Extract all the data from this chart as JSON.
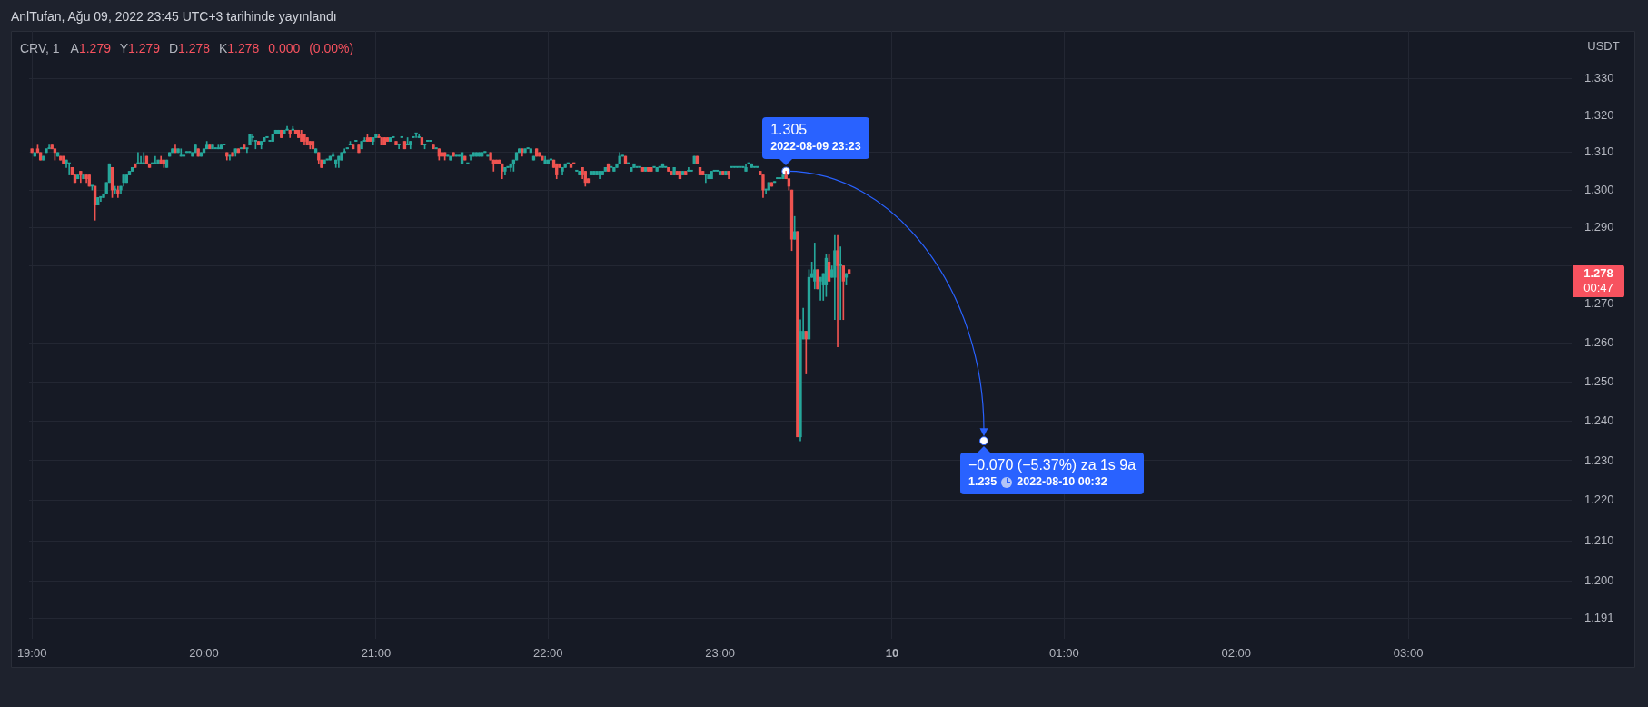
{
  "chart_data": {
    "type": "candlestick",
    "title": "CRV, 1",
    "subtitle": "A1.279 Y1.279 D1.278 K1.278 0.000 (0.00%)",
    "ylabel": "USDT",
    "annotations": [
      "AnlTufan, Ağu 09, 2022 23:45 UTC+3 tarihinde yayınlandı",
      "00:47",
      {
        "text": "1.305",
        "x": "2022-08-09T23:23",
        "y": 1.305
      },
      "2022-08-09 23:23",
      {
        "text": "−0.070 (−5.37%) za 1s 9a",
        "x": "2022-08-10T00:32",
        "y": 1.235
      },
      "1.235",
      "2022-08-10 00:32"
    ],
    "xlim": [
      "2022-08-09T18:59",
      "2022-08-10T03:57"
    ],
    "xticks": [
      {
        "value": "2022-08-09T19:00",
        "label": "19:00"
      },
      {
        "value": "2022-08-09T20:00",
        "label": "20:00"
      },
      {
        "value": "2022-08-09T21:00",
        "label": "21:00"
      },
      {
        "value": "2022-08-09T22:00",
        "label": "22:00"
      },
      {
        "value": "2022-08-09T23:00",
        "label": "23:00"
      },
      {
        "value": "2022-08-10T00:00",
        "label": "10"
      },
      {
        "value": "2022-08-10T01:00",
        "label": "01:00"
      },
      {
        "value": "2022-08-10T02:00",
        "label": "02:00"
      },
      {
        "value": "2022-08-10T03:00",
        "label": "03:00"
      }
    ],
    "ylim": [
      1.186,
      1.343
    ],
    "yticks": [
      1.191,
      {
        "value": 1.2,
        "label": "1.200"
      },
      {
        "value": 1.21,
        "label": "1.210"
      },
      {
        "value": 1.22,
        "label": "1.220"
      },
      {
        "value": 1.23,
        "label": "1.230"
      },
      {
        "value": 1.24,
        "label": "1.240"
      },
      {
        "value": 1.25,
        "label": "1.250"
      },
      {
        "value": 1.26,
        "label": "1.260"
      },
      {
        "value": 1.27,
        "label": "1.270"
      },
      {
        "value": 1.28,
        "label": null
      },
      {
        "value": 1.29,
        "label": "1.290"
      },
      {
        "value": 1.3,
        "label": "1.300"
      },
      {
        "value": 1.31,
        "label": "1.310"
      },
      {
        "value": 1.32,
        "label": "1.320"
      },
      {
        "value": 1.33,
        "label": "1.330"
      }
    ],
    "log": true,
    "grid": true,
    "ref_lines": [
      {
        "axis": "y",
        "value": 1.278,
        "label": "1.278",
        "color": "#f7525f",
        "line_style": "dotted"
      }
    ],
    "x": [
      "2022-08-09T19:00",
      "2022-08-09T19:01",
      "2022-08-09T19:02",
      "2022-08-09T19:03",
      "2022-08-09T19:04",
      "2022-08-09T19:05",
      "2022-08-09T19:06",
      "2022-08-09T19:07",
      "2022-08-09T19:08",
      "2022-08-09T19:09",
      "2022-08-09T19:10",
      "2022-08-09T19:11",
      "2022-08-09T19:12",
      "2022-08-09T19:13",
      "2022-08-09T19:14",
      "2022-08-09T19:15",
      "2022-08-09T19:16",
      "2022-08-09T19:17",
      "2022-08-09T19:18",
      "2022-08-09T19:19",
      "2022-08-09T19:20",
      "2022-08-09T19:21",
      "2022-08-09T19:22",
      "2022-08-09T19:23",
      "2022-08-09T19:24",
      "2022-08-09T19:25",
      "2022-08-09T19:26",
      "2022-08-09T19:27",
      "2022-08-09T19:28",
      "2022-08-09T19:29",
      "2022-08-09T19:30",
      "2022-08-09T19:31",
      "2022-08-09T19:32",
      "2022-08-09T19:33",
      "2022-08-09T19:34",
      "2022-08-09T19:35",
      "2022-08-09T19:36",
      "2022-08-09T19:37",
      "2022-08-09T19:38",
      "2022-08-09T19:39",
      "2022-08-09T19:40",
      "2022-08-09T19:41",
      "2022-08-09T19:42",
      "2022-08-09T19:43",
      "2022-08-09T19:44",
      "2022-08-09T19:45",
      "2022-08-09T19:46",
      "2022-08-09T19:47",
      "2022-08-09T19:48",
      "2022-08-09T19:49",
      "2022-08-09T19:50",
      "2022-08-09T19:51",
      "2022-08-09T19:52",
      "2022-08-09T19:53",
      "2022-08-09T19:54",
      "2022-08-09T19:55",
      "2022-08-09T19:56",
      "2022-08-09T19:57",
      "2022-08-09T19:58",
      "2022-08-09T19:59",
      "2022-08-09T20:00",
      "2022-08-09T20:01",
      "2022-08-09T20:02",
      "2022-08-09T20:03",
      "2022-08-09T20:04",
      "2022-08-09T20:05",
      "2022-08-09T20:06",
      "2022-08-09T20:07",
      "2022-08-09T20:08",
      "2022-08-09T20:09",
      "2022-08-09T20:10",
      "2022-08-09T20:11",
      "2022-08-09T20:12",
      "2022-08-09T20:13",
      "2022-08-09T20:14",
      "2022-08-09T20:15",
      "2022-08-09T20:16",
      "2022-08-09T20:17",
      "2022-08-09T20:18",
      "2022-08-09T20:19",
      "2022-08-09T20:20",
      "2022-08-09T20:21",
      "2022-08-09T20:22",
      "2022-08-09T20:23",
      "2022-08-09T20:24",
      "2022-08-09T20:25",
      "2022-08-09T20:26",
      "2022-08-09T20:27",
      "2022-08-09T20:28",
      "2022-08-09T20:29",
      "2022-08-09T20:30",
      "2022-08-09T20:31",
      "2022-08-09T20:32",
      "2022-08-09T20:33",
      "2022-08-09T20:34",
      "2022-08-09T20:35",
      "2022-08-09T20:36",
      "2022-08-09T20:37",
      "2022-08-09T20:38",
      "2022-08-09T20:39",
      "2022-08-09T20:40",
      "2022-08-09T20:41",
      "2022-08-09T20:42",
      "2022-08-09T20:43",
      "2022-08-09T20:44",
      "2022-08-09T20:45",
      "2022-08-09T20:46",
      "2022-08-09T20:47",
      "2022-08-09T20:48",
      "2022-08-09T20:49",
      "2022-08-09T20:50",
      "2022-08-09T20:51",
      "2022-08-09T20:52",
      "2022-08-09T20:53",
      "2022-08-09T20:54",
      "2022-08-09T20:55",
      "2022-08-09T20:56",
      "2022-08-09T20:57",
      "2022-08-09T20:58",
      "2022-08-09T20:59",
      "2022-08-09T21:00",
      "2022-08-09T21:01",
      "2022-08-09T21:02",
      "2022-08-09T21:03",
      "2022-08-09T21:04",
      "2022-08-09T21:05",
      "2022-08-09T21:06",
      "2022-08-09T21:07",
      "2022-08-09T21:08",
      "2022-08-09T21:09",
      "2022-08-09T21:10",
      "2022-08-09T21:11",
      "2022-08-09T21:12",
      "2022-08-09T21:13",
      "2022-08-09T21:14",
      "2022-08-09T21:15",
      "2022-08-09T21:16",
      "2022-08-09T21:17",
      "2022-08-09T21:18",
      "2022-08-09T21:19",
      "2022-08-09T21:20",
      "2022-08-09T21:21",
      "2022-08-09T21:22",
      "2022-08-09T21:23",
      "2022-08-09T21:24",
      "2022-08-09T21:25",
      "2022-08-09T21:26",
      "2022-08-09T21:27",
      "2022-08-09T21:28",
      "2022-08-09T21:29",
      "2022-08-09T21:30",
      "2022-08-09T21:31",
      "2022-08-09T21:32",
      "2022-08-09T21:33",
      "2022-08-09T21:34",
      "2022-08-09T21:35",
      "2022-08-09T21:36",
      "2022-08-09T21:37",
      "2022-08-09T21:38",
      "2022-08-09T21:39",
      "2022-08-09T21:40",
      "2022-08-09T21:41",
      "2022-08-09T21:42",
      "2022-08-09T21:43",
      "2022-08-09T21:44",
      "2022-08-09T21:45",
      "2022-08-09T21:46",
      "2022-08-09T21:47",
      "2022-08-09T21:48",
      "2022-08-09T21:49",
      "2022-08-09T21:50",
      "2022-08-09T21:51",
      "2022-08-09T21:52",
      "2022-08-09T21:53",
      "2022-08-09T21:54",
      "2022-08-09T21:55",
      "2022-08-09T21:56",
      "2022-08-09T21:57",
      "2022-08-09T21:58",
      "2022-08-09T21:59",
      "2022-08-09T22:00",
      "2022-08-09T22:01",
      "2022-08-09T22:02",
      "2022-08-09T22:03",
      "2022-08-09T22:04",
      "2022-08-09T22:05",
      "2022-08-09T22:06",
      "2022-08-09T22:07",
      "2022-08-09T22:08",
      "2022-08-09T22:09",
      "2022-08-09T22:10",
      "2022-08-09T22:11",
      "2022-08-09T22:12",
      "2022-08-09T22:13",
      "2022-08-09T22:14",
      "2022-08-09T22:15",
      "2022-08-09T22:16",
      "2022-08-09T22:17",
      "2022-08-09T22:18",
      "2022-08-09T22:19",
      "2022-08-09T22:20",
      "2022-08-09T22:21",
      "2022-08-09T22:22",
      "2022-08-09T22:23",
      "2022-08-09T22:24",
      "2022-08-09T22:25",
      "2022-08-09T22:26",
      "2022-08-09T22:27",
      "2022-08-09T22:28",
      "2022-08-09T22:29",
      "2022-08-09T22:30",
      "2022-08-09T22:31",
      "2022-08-09T22:32",
      "2022-08-09T22:33",
      "2022-08-09T22:34",
      "2022-08-09T22:35",
      "2022-08-09T22:36",
      "2022-08-09T22:37",
      "2022-08-09T22:38",
      "2022-08-09T22:39",
      "2022-08-09T22:40",
      "2022-08-09T22:41",
      "2022-08-09T22:42",
      "2022-08-09T22:43",
      "2022-08-09T22:44",
      "2022-08-09T22:45",
      "2022-08-09T22:46",
      "2022-08-09T22:47",
      "2022-08-09T22:48",
      "2022-08-09T22:49",
      "2022-08-09T22:50",
      "2022-08-09T22:51",
      "2022-08-09T22:52",
      "2022-08-09T22:53",
      "2022-08-09T22:54",
      "2022-08-09T22:55",
      "2022-08-09T22:56",
      "2022-08-09T22:57",
      "2022-08-09T22:58",
      "2022-08-09T22:59",
      "2022-08-09T23:00",
      "2022-08-09T23:01",
      "2022-08-09T23:02",
      "2022-08-09T23:03",
      "2022-08-09T23:04",
      "2022-08-09T23:05",
      "2022-08-09T23:06",
      "2022-08-09T23:07",
      "2022-08-09T23:08",
      "2022-08-09T23:09",
      "2022-08-09T23:10",
      "2022-08-09T23:11",
      "2022-08-09T23:12",
      "2022-08-09T23:13",
      "2022-08-09T23:14",
      "2022-08-09T23:15",
      "2022-08-09T23:16",
      "2022-08-09T23:17",
      "2022-08-09T23:18",
      "2022-08-09T23:19",
      "2022-08-09T23:20",
      "2022-08-09T23:21",
      "2022-08-09T23:22",
      "2022-08-09T23:23",
      "2022-08-09T23:24",
      "2022-08-09T23:25",
      "2022-08-09T23:26",
      "2022-08-09T23:27",
      "2022-08-09T23:28",
      "2022-08-09T23:29",
      "2022-08-09T23:30",
      "2022-08-09T23:31",
      "2022-08-09T23:32",
      "2022-08-09T23:33",
      "2022-08-09T23:34",
      "2022-08-09T23:35",
      "2022-08-09T23:36",
      "2022-08-09T23:37",
      "2022-08-09T23:38",
      "2022-08-09T23:39",
      "2022-08-09T23:40",
      "2022-08-09T23:41",
      "2022-08-09T23:42",
      "2022-08-09T23:43",
      "2022-08-09T23:44",
      "2022-08-09T23:45"
    ],
    "ohlc": [
      [
        1.311,
        1.311,
        1.31,
        1.31
      ],
      [
        1.309,
        1.31,
        1.309,
        1.31
      ],
      [
        1.311,
        1.312,
        1.31,
        1.31
      ],
      [
        1.31,
        1.31,
        1.308,
        1.308
      ],
      [
        1.308,
        1.309,
        1.308,
        1.309
      ],
      [
        1.31,
        1.311,
        1.31,
        1.311
      ],
      [
        1.311,
        1.312,
        1.311,
        1.311
      ],
      [
        1.312,
        1.312,
        1.311,
        1.311
      ],
      [
        1.311,
        1.311,
        1.308,
        1.31
      ],
      [
        1.309,
        1.31,
        1.309,
        1.31
      ],
      [
        1.309,
        1.309,
        1.308,
        1.308
      ],
      [
        1.309,
        1.309,
        1.307,
        1.307
      ],
      [
        1.307,
        1.308,
        1.306,
        1.308
      ],
      [
        1.307,
        1.307,
        1.304,
        1.307
      ],
      [
        1.306,
        1.306,
        1.304,
        1.304
      ],
      [
        1.304,
        1.304,
        1.302,
        1.302
      ],
      [
        1.303,
        1.304,
        1.303,
        1.304
      ],
      [
        1.305,
        1.305,
        1.302,
        1.304
      ],
      [
        1.303,
        1.304,
        1.303,
        1.304
      ],
      [
        1.304,
        1.304,
        1.302,
        1.303
      ],
      [
        1.304,
        1.304,
        1.301,
        1.301
      ],
      [
        1.301,
        1.301,
        1.3,
        1.301
      ],
      [
        1.301,
        1.301,
        1.292,
        1.296
      ],
      [
        1.296,
        1.298,
        1.296,
        1.298
      ],
      [
        1.298,
        1.298,
        1.297,
        1.298
      ],
      [
        1.298,
        1.299,
        1.298,
        1.299
      ],
      [
        1.299,
        1.302,
        1.299,
        1.302
      ],
      [
        1.302,
        1.307,
        1.302,
        1.307
      ],
      [
        1.306,
        1.306,
        1.298,
        1.3
      ],
      [
        1.3,
        1.301,
        1.299,
        1.3
      ],
      [
        1.3,
        1.301,
        1.298,
        1.299
      ],
      [
        1.3,
        1.301,
        1.299,
        1.301
      ],
      [
        1.302,
        1.304,
        1.301,
        1.304
      ],
      [
        1.302,
        1.304,
        1.302,
        1.304
      ],
      [
        1.304,
        1.305,
        1.304,
        1.305
      ],
      [
        1.305,
        1.306,
        1.305,
        1.306
      ],
      [
        1.307,
        1.307,
        1.306,
        1.306
      ],
      [
        1.307,
        1.31,
        1.307,
        1.307
      ],
      [
        1.307,
        1.309,
        1.307,
        1.307
      ],
      [
        1.307,
        1.31,
        1.307,
        1.307
      ],
      [
        1.309,
        1.309,
        1.307,
        1.307
      ],
      [
        1.307,
        1.307,
        1.306,
        1.306
      ],
      [
        1.307,
        1.307,
        1.307,
        1.307
      ],
      [
        1.307,
        1.309,
        1.307,
        1.307
      ],
      [
        1.307,
        1.308,
        1.307,
        1.308
      ],
      [
        1.308,
        1.309,
        1.307,
        1.307
      ],
      [
        1.308,
        1.308,
        1.306,
        1.307
      ],
      [
        1.306,
        1.308,
        1.306,
        1.308
      ],
      [
        1.309,
        1.31,
        1.309,
        1.31
      ],
      [
        1.31,
        1.311,
        1.31,
        1.311
      ],
      [
        1.311,
        1.312,
        1.31,
        1.31
      ],
      [
        1.31,
        1.311,
        1.31,
        1.311
      ],
      [
        1.309,
        1.311,
        1.309,
        1.309
      ],
      [
        1.309,
        1.309,
        1.309,
        1.309
      ],
      [
        1.31,
        1.31,
        1.31,
        1.31
      ],
      [
        1.31,
        1.31,
        1.31,
        1.31
      ],
      [
        1.309,
        1.31,
        1.309,
        1.31
      ],
      [
        1.31,
        1.312,
        1.31,
        1.312
      ],
      [
        1.311,
        1.311,
        1.309,
        1.309
      ],
      [
        1.309,
        1.31,
        1.309,
        1.31
      ],
      [
        1.31,
        1.311,
        1.31,
        1.311
      ],
      [
        1.311,
        1.313,
        1.311,
        1.312
      ],
      [
        1.312,
        1.312,
        1.311,
        1.311
      ],
      [
        1.311,
        1.312,
        1.311,
        1.312
      ],
      [
        1.311,
        1.311,
        1.311,
        1.311
      ],
      [
        1.311,
        1.312,
        1.311,
        1.311
      ],
      [
        1.311,
        1.312,
        1.311,
        1.312
      ],
      [
        1.312,
        1.312,
        1.312,
        1.312
      ],
      [
        1.31,
        1.31,
        1.308,
        1.309
      ],
      [
        1.309,
        1.309,
        1.308,
        1.309
      ],
      [
        1.31,
        1.31,
        1.309,
        1.309
      ],
      [
        1.31,
        1.311,
        1.309,
        1.311
      ],
      [
        1.311,
        1.311,
        1.31,
        1.31
      ],
      [
        1.311,
        1.311,
        1.311,
        1.311
      ],
      [
        1.312,
        1.312,
        1.311,
        1.311
      ],
      [
        1.311,
        1.311,
        1.31,
        1.311
      ],
      [
        1.312,
        1.315,
        1.312,
        1.315
      ],
      [
        1.314,
        1.315,
        1.313,
        1.314
      ],
      [
        1.313,
        1.313,
        1.311,
        1.313
      ],
      [
        1.313,
        1.313,
        1.312,
        1.312
      ],
      [
        1.312,
        1.313,
        1.311,
        1.313
      ],
      [
        1.313,
        1.314,
        1.313,
        1.314
      ],
      [
        1.314,
        1.314,
        1.314,
        1.314
      ],
      [
        1.313,
        1.313,
        1.313,
        1.313
      ],
      [
        1.313,
        1.315,
        1.313,
        1.315
      ],
      [
        1.315,
        1.316,
        1.315,
        1.316
      ],
      [
        1.315,
        1.316,
        1.315,
        1.316
      ],
      [
        1.316,
        1.316,
        1.314,
        1.314
      ],
      [
        1.315,
        1.316,
        1.315,
        1.316
      ],
      [
        1.316,
        1.317,
        1.316,
        1.316
      ],
      [
        1.316,
        1.316,
        1.314,
        1.315
      ],
      [
        1.316,
        1.317,
        1.316,
        1.316
      ],
      [
        1.316,
        1.316,
        1.315,
        1.315
      ],
      [
        1.316,
        1.316,
        1.314,
        1.314
      ],
      [
        1.315,
        1.316,
        1.313,
        1.313
      ],
      [
        1.315,
        1.315,
        1.312,
        1.313
      ],
      [
        1.314,
        1.314,
        1.312,
        1.312
      ],
      [
        1.313,
        1.313,
        1.311,
        1.312
      ],
      [
        1.313,
        1.313,
        1.311,
        1.311
      ],
      [
        1.31,
        1.311,
        1.31,
        1.311
      ],
      [
        1.31,
        1.31,
        1.307,
        1.308
      ],
      [
        1.308,
        1.308,
        1.306,
        1.306
      ],
      [
        1.307,
        1.308,
        1.307,
        1.308
      ],
      [
        1.308,
        1.308,
        1.308,
        1.308
      ],
      [
        1.308,
        1.309,
        1.308,
        1.309
      ],
      [
        1.309,
        1.31,
        1.309,
        1.309
      ],
      [
        1.307,
        1.308,
        1.306,
        1.308
      ],
      [
        1.308,
        1.309,
        1.306,
        1.309
      ],
      [
        1.308,
        1.31,
        1.308,
        1.31
      ],
      [
        1.31,
        1.311,
        1.31,
        1.31
      ],
      [
        1.311,
        1.311,
        1.311,
        1.311
      ],
      [
        1.312,
        1.313,
        1.312,
        1.312
      ],
      [
        1.312,
        1.312,
        1.311,
        1.311
      ],
      [
        1.313,
        1.313,
        1.313,
        1.313
      ],
      [
        1.312,
        1.312,
        1.31,
        1.31
      ],
      [
        1.311,
        1.313,
        1.311,
        1.313
      ],
      [
        1.313,
        1.314,
        1.313,
        1.313
      ],
      [
        1.314,
        1.315,
        1.313,
        1.313
      ],
      [
        1.314,
        1.314,
        1.313,
        1.313
      ],
      [
        1.313,
        1.314,
        1.312,
        1.314
      ],
      [
        1.314,
        1.315,
        1.314,
        1.315
      ],
      [
        1.314,
        1.315,
        1.314,
        1.314
      ],
      [
        1.314,
        1.314,
        1.312,
        1.312
      ],
      [
        1.314,
        1.314,
        1.312,
        1.312
      ],
      [
        1.314,
        1.314,
        1.313,
        1.313
      ],
      [
        1.313,
        1.314,
        1.313,
        1.314
      ],
      [
        1.314,
        1.314,
        1.314,
        1.314
      ],
      [
        1.313,
        1.313,
        1.312,
        1.312
      ],
      [
        1.312,
        1.312,
        1.311,
        1.312
      ],
      [
        1.314,
        1.314,
        1.314,
        1.314
      ],
      [
        1.313,
        1.313,
        1.311,
        1.311
      ],
      [
        1.312,
        1.314,
        1.312,
        1.312
      ],
      [
        1.312,
        1.313,
        1.311,
        1.313
      ],
      [
        1.314,
        1.314,
        1.314,
        1.314
      ],
      [
        1.315,
        1.315,
        1.314,
        1.315
      ],
      [
        1.314,
        1.315,
        1.314,
        1.314
      ],
      [
        1.314,
        1.314,
        1.312,
        1.312
      ],
      [
        1.312,
        1.312,
        1.311,
        1.312
      ],
      [
        1.313,
        1.313,
        1.313,
        1.313
      ],
      [
        1.313,
        1.313,
        1.313,
        1.313
      ],
      [
        1.312,
        1.312,
        1.311,
        1.311
      ],
      [
        1.311,
        1.311,
        1.311,
        1.311
      ],
      [
        1.311,
        1.311,
        1.308,
        1.309
      ],
      [
        1.31,
        1.31,
        1.309,
        1.309
      ],
      [
        1.31,
        1.31,
        1.308,
        1.309
      ],
      [
        1.309,
        1.309,
        1.309,
        1.309
      ],
      [
        1.308,
        1.309,
        1.308,
        1.309
      ],
      [
        1.31,
        1.31,
        1.309,
        1.309
      ],
      [
        1.309,
        1.309,
        1.309,
        1.309
      ],
      [
        1.309,
        1.309,
        1.309,
        1.309
      ],
      [
        1.307,
        1.31,
        1.307,
        1.31
      ],
      [
        1.309,
        1.309,
        1.308,
        1.308
      ],
      [
        1.307,
        1.307,
        1.307,
        1.307
      ],
      [
        1.309,
        1.309,
        1.308,
        1.309
      ],
      [
        1.309,
        1.31,
        1.309,
        1.31
      ],
      [
        1.309,
        1.31,
        1.309,
        1.31
      ],
      [
        1.309,
        1.31,
        1.309,
        1.31
      ],
      [
        1.309,
        1.31,
        1.309,
        1.31
      ],
      [
        1.31,
        1.31,
        1.31,
        1.31
      ],
      [
        1.309,
        1.309,
        1.309,
        1.309
      ],
      [
        1.31,
        1.31,
        1.308,
        1.308
      ],
      [
        1.308,
        1.308,
        1.305,
        1.307
      ],
      [
        1.308,
        1.308,
        1.307,
        1.307
      ],
      [
        1.308,
        1.308,
        1.307,
        1.307
      ],
      [
        1.307,
        1.307,
        1.303,
        1.305
      ],
      [
        1.305,
        1.306,
        1.304,
        1.306
      ],
      [
        1.306,
        1.306,
        1.306,
        1.306
      ],
      [
        1.306,
        1.307,
        1.305,
        1.307
      ],
      [
        1.307,
        1.308,
        1.305,
        1.308
      ],
      [
        1.308,
        1.31,
        1.308,
        1.31
      ],
      [
        1.31,
        1.311,
        1.31,
        1.311
      ],
      [
        1.311,
        1.311,
        1.309,
        1.31
      ],
      [
        1.31,
        1.311,
        1.31,
        1.311
      ],
      [
        1.311,
        1.311,
        1.311,
        1.311
      ],
      [
        1.31,
        1.311,
        1.31,
        1.311
      ],
      [
        1.308,
        1.309,
        1.308,
        1.309
      ],
      [
        1.311,
        1.311,
        1.309,
        1.309
      ],
      [
        1.31,
        1.31,
        1.309,
        1.309
      ],
      [
        1.309,
        1.309,
        1.308,
        1.308
      ],
      [
        1.307,
        1.309,
        1.307,
        1.308
      ],
      [
        1.307,
        1.308,
        1.307,
        1.308
      ],
      [
        1.308,
        1.308,
        1.308,
        1.308
      ],
      [
        1.308,
        1.308,
        1.306,
        1.306
      ],
      [
        1.307,
        1.307,
        1.303,
        1.304
      ],
      [
        1.307,
        1.307,
        1.306,
        1.306
      ],
      [
        1.305,
        1.306,
        1.304,
        1.306
      ],
      [
        1.306,
        1.307,
        1.306,
        1.307
      ],
      [
        1.307,
        1.307,
        1.307,
        1.307
      ],
      [
        1.307,
        1.307,
        1.306,
        1.306
      ],
      [
        1.307,
        1.307,
        1.307,
        1.307
      ],
      [
        1.305,
        1.305,
        1.305,
        1.305
      ],
      [
        1.304,
        1.305,
        1.304,
        1.305
      ],
      [
        1.306,
        1.306,
        1.303,
        1.304
      ],
      [
        1.305,
        1.305,
        1.301,
        1.302
      ],
      [
        1.303,
        1.303,
        1.302,
        1.302
      ],
      [
        1.304,
        1.305,
        1.304,
        1.305
      ],
      [
        1.304,
        1.305,
        1.304,
        1.305
      ],
      [
        1.304,
        1.305,
        1.304,
        1.305
      ],
      [
        1.304,
        1.305,
        1.303,
        1.305
      ],
      [
        1.304,
        1.305,
        1.304,
        1.305
      ],
      [
        1.305,
        1.306,
        1.305,
        1.306
      ],
      [
        1.307,
        1.307,
        1.305,
        1.305
      ],
      [
        1.306,
        1.306,
        1.306,
        1.306
      ],
      [
        1.305,
        1.306,
        1.305,
        1.306
      ],
      [
        1.306,
        1.307,
        1.306,
        1.307
      ],
      [
        1.307,
        1.31,
        1.307,
        1.309
      ],
      [
        1.309,
        1.309,
        1.309,
        1.309
      ],
      [
        1.309,
        1.309,
        1.307,
        1.307
      ],
      [
        1.307,
        1.307,
        1.307,
        1.307
      ],
      [
        1.305,
        1.306,
        1.305,
        1.306
      ],
      [
        1.306,
        1.307,
        1.306,
        1.307
      ],
      [
        1.306,
        1.306,
        1.306,
        1.306
      ],
      [
        1.306,
        1.306,
        1.306,
        1.306
      ],
      [
        1.306,
        1.306,
        1.305,
        1.305
      ],
      [
        1.305,
        1.306,
        1.305,
        1.306
      ],
      [
        1.306,
        1.306,
        1.305,
        1.305
      ],
      [
        1.306,
        1.306,
        1.305,
        1.305
      ],
      [
        1.306,
        1.306,
        1.306,
        1.306
      ],
      [
        1.305,
        1.306,
        1.305,
        1.306
      ],
      [
        1.306,
        1.306,
        1.306,
        1.306
      ],
      [
        1.306,
        1.307,
        1.306,
        1.307
      ],
      [
        1.306,
        1.306,
        1.306,
        1.306
      ],
      [
        1.306,
        1.306,
        1.305,
        1.305
      ],
      [
        1.305,
        1.305,
        1.304,
        1.304
      ],
      [
        1.304,
        1.306,
        1.304,
        1.306
      ],
      [
        1.305,
        1.305,
        1.304,
        1.304
      ],
      [
        1.305,
        1.305,
        1.303,
        1.303
      ],
      [
        1.304,
        1.305,
        1.304,
        1.305
      ],
      [
        1.305,
        1.305,
        1.304,
        1.304
      ],
      [
        1.305,
        1.306,
        1.305,
        1.305
      ],
      [
        1.305,
        1.305,
        1.305,
        1.305
      ],
      [
        1.307,
        1.309,
        1.307,
        1.309
      ],
      [
        1.309,
        1.309,
        1.307,
        1.307
      ],
      [
        1.306,
        1.306,
        1.304,
        1.304
      ],
      [
        1.305,
        1.305,
        1.304,
        1.304
      ],
      [
        1.304,
        1.304,
        1.302,
        1.304
      ],
      [
        1.303,
        1.304,
        1.303,
        1.304
      ],
      [
        1.303,
        1.305,
        1.303,
        1.305
      ],
      [
        1.305,
        1.305,
        1.305,
        1.305
      ],
      [
        1.305,
        1.305,
        1.305,
        1.305
      ],
      [
        1.304,
        1.305,
        1.304,
        1.305
      ],
      [
        1.305,
        1.305,
        1.304,
        1.304
      ],
      [
        1.304,
        1.305,
        1.304,
        1.305
      ],
      [
        1.305,
        1.305,
        1.303,
        1.304
      ],
      [
        1.306,
        1.306,
        1.306,
        1.306
      ],
      [
        1.306,
        1.306,
        1.306,
        1.306
      ],
      [
        1.306,
        1.306,
        1.306,
        1.306
      ],
      [
        1.306,
        1.306,
        1.306,
        1.306
      ],
      [
        1.306,
        1.306,
        1.306,
        1.306
      ],
      [
        1.305,
        1.307,
        1.305,
        1.306
      ],
      [
        1.307,
        1.307,
        1.307,
        1.307
      ],
      [
        1.306,
        1.307,
        1.306,
        1.307
      ],
      [
        1.306,
        1.306,
        1.306,
        1.306
      ],
      [
        1.306,
        1.306,
        1.306,
        1.306
      ],
      [
        1.305,
        1.305,
        1.304,
        1.304
      ],
      [
        1.304,
        1.304,
        1.298,
        1.3
      ],
      [
        1.3,
        1.3,
        1.299,
        1.3
      ],
      [
        1.3,
        1.302,
        1.3,
        1.302
      ],
      [
        1.302,
        1.302,
        1.301,
        1.301
      ],
      [
        1.302,
        1.302,
        1.302,
        1.302
      ],
      [
        1.303,
        1.303,
        1.303,
        1.303
      ],
      [
        1.303,
        1.303,
        1.303,
        1.303
      ],
      [
        1.303,
        1.304,
        1.303,
        1.304
      ],
      [
        1.304,
        1.305,
        1.303,
        1.303
      ],
      [
        1.303,
        1.303,
        1.3,
        1.301
      ],
      [
        1.3,
        1.3,
        1.284,
        1.287
      ],
      [
        1.287,
        1.293,
        1.287,
        1.289
      ],
      [
        1.289,
        1.289,
        1.236,
        1.236
      ],
      [
        1.236,
        1.266,
        1.235,
        1.263
      ],
      [
        1.261,
        1.269,
        1.261,
        1.263
      ],
      [
        1.263,
        1.263,
        1.252,
        1.261
      ],
      [
        1.261,
        1.279,
        1.261,
        1.277
      ],
      [
        1.277,
        1.281,
        1.277,
        1.278
      ],
      [
        1.276,
        1.286,
        1.274,
        1.279
      ],
      [
        1.279,
        1.279,
        1.274,
        1.274
      ],
      [
        1.276,
        1.277,
        1.271,
        1.277
      ],
      [
        1.275,
        1.278,
        1.271,
        1.278
      ],
      [
        1.275,
        1.283,
        1.272,
        1.282
      ],
      [
        1.281,
        1.283,
        1.276,
        1.276
      ],
      [
        1.277,
        1.28,
        1.277,
        1.279
      ],
      [
        1.277,
        1.288,
        1.266,
        1.284
      ],
      [
        1.284,
        1.288,
        1.259,
        1.28
      ],
      [
        1.28,
        1.285,
        1.266,
        1.28
      ],
      [
        1.28,
        1.28,
        1.266,
        1.276
      ],
      [
        1.277,
        1.278,
        1.275,
        1.278
      ],
      [
        1.279,
        1.279,
        1.278,
        1.278
      ]
    ],
    "colors": [
      "#ef5350",
      "#26a69a",
      "#ef5350",
      "#ef5350",
      "#26a69a",
      "#26a69a",
      "#26a69a",
      "#ef5350",
      "#ef5350",
      "#26a69a",
      "#ef5350",
      "#ef5350",
      "#26a69a",
      "#26a69a",
      "#ef5350",
      "#ef5350",
      "#26a69a",
      "#ef5350",
      "#26a69a",
      "#ef5350",
      "#ef5350",
      "#26a69a",
      "#ef5350",
      "#26a69a",
      "#26a69a",
      "#26a69a",
      "#26a69a",
      "#26a69a",
      "#ef5350",
      "#26a69a",
      "#ef5350",
      "#26a69a",
      "#26a69a",
      "#26a69a",
      "#26a69a",
      "#26a69a",
      "#ef5350",
      "#26a69a",
      "#26a69a",
      "#26a69a",
      "#ef5350",
      "#ef5350",
      "#26a69a",
      "#26a69a",
      "#26a69a",
      "#ef5350",
      "#ef5350",
      "#26a69a",
      "#26a69a",
      "#26a69a",
      "#ef5350",
      "#26a69a",
      "#26a69a",
      "#26a69a",
      "#26a69a",
      "#26a69a",
      "#26a69a",
      "#26a69a",
      "#ef5350",
      "#26a69a",
      "#26a69a",
      "#26a69a",
      "#ef5350",
      "#26a69a",
      "#26a69a",
      "#26a69a",
      "#26a69a",
      "#26a69a",
      "#ef5350",
      "#26a69a",
      "#ef5350",
      "#26a69a",
      "#ef5350",
      "#26a69a",
      "#ef5350",
      "#26a69a",
      "#26a69a",
      "#26a69a",
      "#26a69a",
      "#ef5350",
      "#26a69a",
      "#26a69a",
      "#26a69a",
      "#26a69a",
      "#26a69a",
      "#26a69a",
      "#26a69a",
      "#ef5350",
      "#26a69a",
      "#26a69a",
      "#ef5350",
      "#26a69a",
      "#ef5350",
      "#ef5350",
      "#ef5350",
      "#ef5350",
      "#ef5350",
      "#ef5350",
      "#ef5350",
      "#26a69a",
      "#ef5350",
      "#ef5350",
      "#26a69a",
      "#26a69a",
      "#26a69a",
      "#26a69a",
      "#26a69a",
      "#26a69a",
      "#26a69a",
      "#26a69a",
      "#26a69a",
      "#26a69a",
      "#ef5350",
      "#26a69a",
      "#ef5350",
      "#26a69a",
      "#26a69a",
      "#ef5350",
      "#ef5350",
      "#26a69a",
      "#26a69a",
      "#ef5350",
      "#ef5350",
      "#ef5350",
      "#ef5350",
      "#26a69a",
      "#26a69a",
      "#ef5350",
      "#26a69a",
      "#26a69a",
      "#ef5350",
      "#26a69a",
      "#26a69a",
      "#26a69a",
      "#26a69a",
      "#26a69a",
      "#ef5350",
      "#26a69a",
      "#26a69a",
      "#26a69a",
      "#ef5350",
      "#26a69a",
      "#ef5350",
      "#ef5350",
      "#ef5350",
      "#26a69a",
      "#26a69a",
      "#ef5350",
      "#26a69a",
      "#26a69a",
      "#26a69a",
      "#ef5350",
      "#26a69a",
      "#26a69a",
      "#26a69a",
      "#26a69a",
      "#26a69a",
      "#26a69a",
      "#26a69a",
      "#26a69a",
      "#ef5350",
      "#ef5350",
      "#ef5350",
      "#ef5350",
      "#ef5350",
      "#26a69a",
      "#26a69a",
      "#26a69a",
      "#26a69a",
      "#26a69a",
      "#26a69a",
      "#ef5350",
      "#26a69a",
      "#26a69a",
      "#26a69a",
      "#26a69a",
      "#ef5350",
      "#ef5350",
      "#ef5350",
      "#26a69a",
      "#26a69a",
      "#26a69a",
      "#ef5350",
      "#ef5350",
      "#ef5350",
      "#26a69a",
      "#26a69a",
      "#26a69a",
      "#ef5350",
      "#ef5350",
      "#26a69a",
      "#26a69a",
      "#ef5350",
      "#ef5350",
      "#ef5350",
      "#26a69a",
      "#26a69a",
      "#26a69a",
      "#26a69a",
      "#26a69a",
      "#26a69a",
      "#ef5350",
      "#26a69a",
      "#26a69a",
      "#26a69a",
      "#26a69a",
      "#26a69a",
      "#ef5350",
      "#26a69a",
      "#26a69a",
      "#26a69a",
      "#26a69a",
      "#26a69a",
      "#ef5350",
      "#26a69a",
      "#ef5350",
      "#ef5350",
      "#26a69a",
      "#26a69a",
      "#26a69a",
      "#26a69a",
      "#26a69a",
      "#ef5350",
      "#ef5350",
      "#26a69a",
      "#ef5350",
      "#ef5350",
      "#26a69a",
      "#ef5350",
      "#26a69a",
      "#26a69a",
      "#26a69a",
      "#ef5350",
      "#ef5350",
      "#ef5350",
      "#26a69a",
      "#26a69a",
      "#26a69a",
      "#26a69a",
      "#26a69a",
      "#26a69a",
      "#ef5350",
      "#26a69a",
      "#ef5350",
      "#26a69a",
      "#26a69a",
      "#26a69a",
      "#26a69a",
      "#26a69a",
      "#26a69a",
      "#26a69a",
      "#26a69a",
      "#26a69a",
      "#26a69a",
      "#ef5350",
      "#ef5350",
      "#26a69a",
      "#26a69a",
      "#ef5350",
      "#26a69a",
      "#26a69a",
      "#26a69a",
      "#26a69a",
      "#ef5350",
      "#ef5350",
      "#ef5350",
      "#26a69a",
      "#ef5350",
      "#26a69a",
      "#26a69a",
      "#ef5350",
      "#26a69a",
      "#26a69a",
      "#26a69a",
      "#ef5350",
      "#26a69a",
      "#26a69a",
      "#26a69a",
      "#ef5350",
      "#26a69a",
      "#26a69a",
      "#ef5350",
      "#26a69a",
      "#ef5350",
      "#26a69a",
      "#ef5350"
    ]
  }
}
